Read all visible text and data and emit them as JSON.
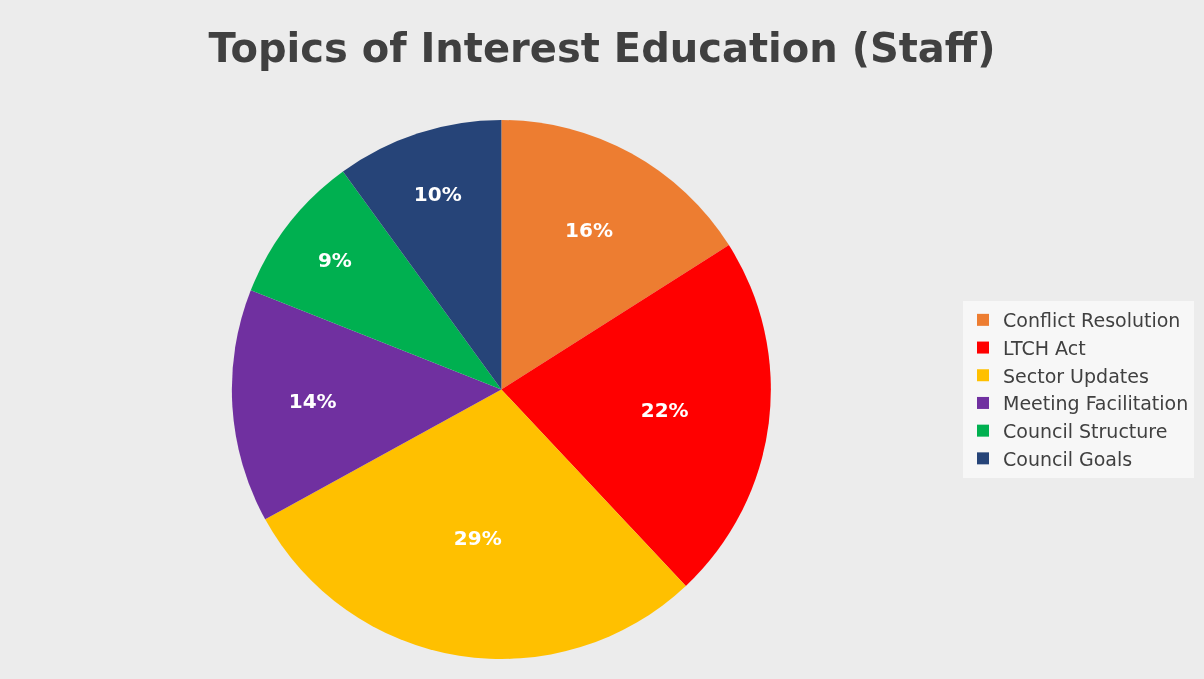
{
  "chart_data": {
    "type": "pie",
    "title": "Topics of Interest Education (Staff)",
    "categories": [
      "Conflict Resolution",
      "LTCH Act",
      "Sector Updates",
      "Meeting Facilitation",
      "Council Structure",
      "Council Goals"
    ],
    "values": [
      16,
      22,
      29,
      14,
      9,
      10
    ],
    "colors": [
      "#ed7d31",
      "#ff0000",
      "#ffc000",
      "#7030a0",
      "#00b050",
      "#264478"
    ],
    "value_labels": [
      "16%",
      "22%",
      "29%",
      "14%",
      "9%",
      "10%"
    ],
    "legend": "right"
  }
}
